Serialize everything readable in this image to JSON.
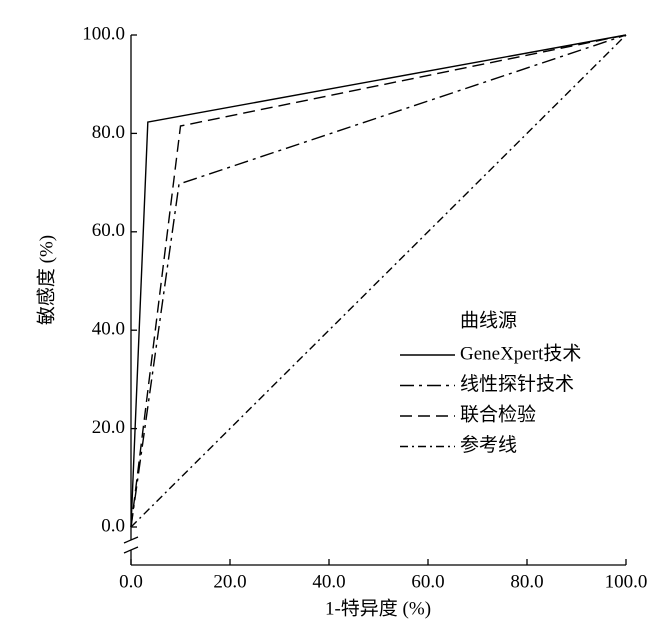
{
  "chart_data": {
    "type": "line",
    "xlabel": "1-特异度 (%)",
    "ylabel": "敏感度 (%)",
    "xlim": [
      0,
      100
    ],
    "ylim": [
      0,
      100
    ],
    "xticks": [
      {
        "value": 0,
        "label": "0.0"
      },
      {
        "value": 20,
        "label": "20.0"
      },
      {
        "value": 40,
        "label": "40.0"
      },
      {
        "value": 60,
        "label": "60.0"
      },
      {
        "value": 80,
        "label": "80.0"
      },
      {
        "value": 100,
        "label": "100.0"
      }
    ],
    "yticks": [
      {
        "value": 0,
        "label": "0.0"
      },
      {
        "value": 20,
        "label": "20.0"
      },
      {
        "value": 40,
        "label": "40.0"
      },
      {
        "value": 60,
        "label": "60.0"
      },
      {
        "value": 80,
        "label": "80.0"
      },
      {
        "value": 100,
        "label": "100.0"
      }
    ],
    "legend_title": "曲线源",
    "series": [
      {
        "name": "GeneXpert技术",
        "color": "#000000",
        "dash": "none",
        "x": [
          0,
          3.4,
          100
        ],
        "values": [
          0,
          82.3,
          100
        ]
      },
      {
        "name": "线性探针技术",
        "color": "#000000",
        "dash": "14 5 3 5",
        "x": [
          0,
          9.7,
          100
        ],
        "values": [
          0,
          69.7,
          100
        ]
      },
      {
        "name": "联合检验",
        "color": "#000000",
        "dash": "12 6",
        "x": [
          0,
          10,
          100
        ],
        "values": [
          0,
          81.5,
          100
        ]
      },
      {
        "name": "参考线",
        "color": "#000000",
        "dash": "8 4 2 4",
        "x": [
          0,
          100
        ],
        "values": [
          0,
          100
        ]
      }
    ]
  }
}
